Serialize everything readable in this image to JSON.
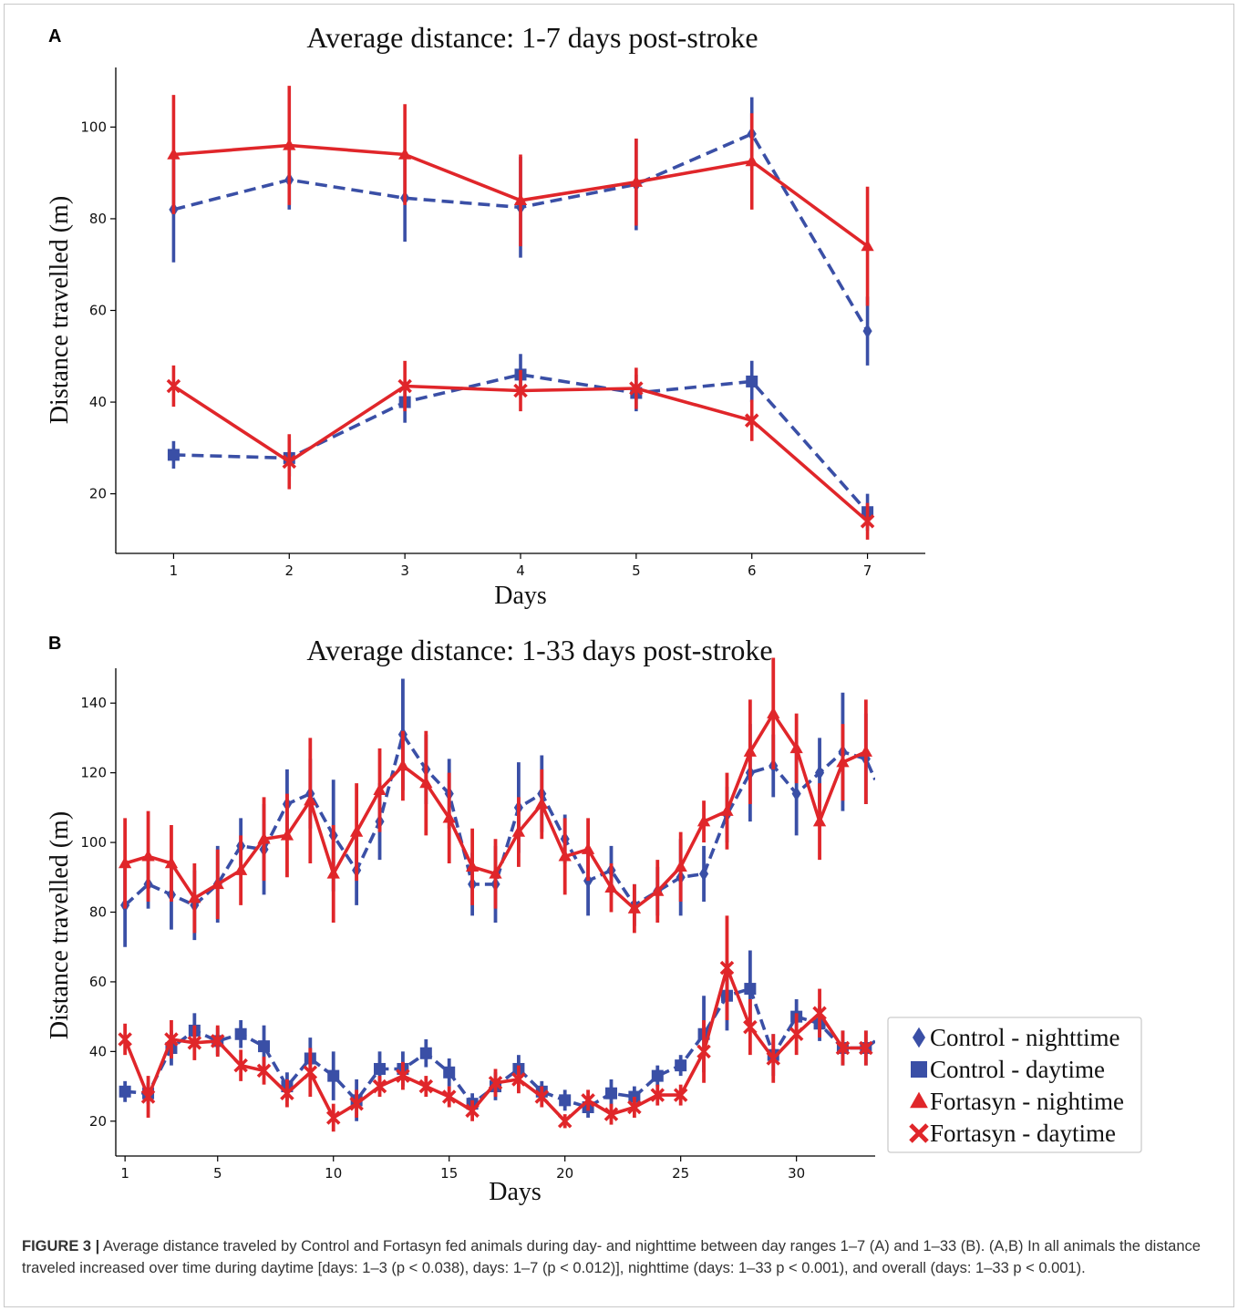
{
  "caption": {
    "lead": "FIGURE 3 |",
    "text": "Average distance traveled by Control and Fortasyn fed animals during day- and nighttime between day ranges 1–7 (A) and 1–33 (B). (A,B) In all animals the distance traveled increased over time during daytime [days: 1–3 (p < 0.038), days: 1–7 (p < 0.012)], nighttime (days: 1–33 p < 0.001), and overall (days: 1–33 p < 0.001)."
  },
  "colors": {
    "control": "#3a4fa6",
    "fortasyn": "#e0262a"
  },
  "legend": {
    "placement": "right",
    "items": [
      {
        "label": "Control - nighttime",
        "marker": "diamond",
        "color": "#3a4fa6"
      },
      {
        "label": "Control - daytime",
        "marker": "square",
        "color": "#3a4fa6"
      },
      {
        "label": "Fortasyn - nightime",
        "marker": "triangle",
        "color": "#e0262a"
      },
      {
        "label": "Fortasyn - daytime",
        "marker": "x",
        "color": "#e0262a"
      }
    ]
  },
  "chart_data": [
    {
      "panel": "A",
      "type": "line",
      "title": "Average distance: 1-7 days post-stroke",
      "xlabel": "Days",
      "ylabel": "Distance travelled (m)",
      "xlim": [
        0.5,
        7.5
      ],
      "ylim": [
        7,
        113
      ],
      "xticks": [
        1,
        2,
        3,
        4,
        5,
        6,
        7
      ],
      "yticks": [
        20,
        40,
        60,
        80,
        100
      ],
      "grid": false,
      "series": [
        {
          "name": "Control - nighttime",
          "color": "#3a4fa6",
          "linestyle": "dashed",
          "marker": "diamond",
          "x": [
            1,
            2,
            3,
            4,
            5,
            6,
            7
          ],
          "y": [
            82,
            88.5,
            84.5,
            82.5,
            87.5,
            98.5,
            55.5
          ],
          "err": [
            11.5,
            6.5,
            9.5,
            11,
            10,
            8,
            7.5
          ]
        },
        {
          "name": "Control - daytime",
          "color": "#3a4fa6",
          "linestyle": "dashed",
          "marker": "square",
          "x": [
            1,
            2,
            3,
            4,
            5,
            6,
            7
          ],
          "y": [
            28.5,
            27.8,
            40,
            46,
            42,
            44.5,
            16
          ],
          "err": [
            3,
            4,
            4.5,
            4.5,
            4,
            4.5,
            4
          ]
        },
        {
          "name": "Fortasyn - nightime",
          "color": "#e0262a",
          "linestyle": "solid",
          "marker": "triangle",
          "x": [
            1,
            2,
            3,
            4,
            5,
            6,
            7
          ],
          "y": [
            94,
            96,
            94,
            84,
            88,
            92.5,
            74
          ],
          "err": [
            13,
            13,
            11,
            10,
            9.5,
            10.5,
            13
          ]
        },
        {
          "name": "Fortasyn - daytime",
          "color": "#e0262a",
          "linestyle": "solid",
          "marker": "x",
          "x": [
            1,
            2,
            3,
            4,
            5,
            6,
            7
          ],
          "y": [
            43.5,
            27,
            43.5,
            42.5,
            43,
            36,
            14
          ],
          "err": [
            4.5,
            6,
            5.5,
            4.5,
            4.5,
            4.5,
            4
          ]
        }
      ]
    },
    {
      "panel": "B",
      "type": "line",
      "title": "Average distance: 1-33 days post-stroke",
      "xlabel": "Days",
      "ylabel": "Distance travelled (m)",
      "xlim": [
        0.6,
        33.4
      ],
      "ylim": [
        10,
        150
      ],
      "xticks": [
        1,
        5,
        10,
        15,
        20,
        25,
        30
      ],
      "yticks": [
        20,
        40,
        60,
        80,
        100,
        120,
        140
      ],
      "grid": false,
      "series": [
        {
          "name": "Control - nighttime",
          "color": "#3a4fa6",
          "linestyle": "dashed",
          "marker": "diamond",
          "x": [
            1,
            2,
            3,
            4,
            5,
            6,
            7,
            8,
            9,
            10,
            11,
            12,
            13,
            14,
            15,
            16,
            17,
            18,
            19,
            20,
            21,
            22,
            23,
            24,
            25,
            26,
            27,
            28,
            29,
            30,
            31,
            32,
            33,
            33.4
          ],
          "y": [
            82,
            88,
            85,
            82,
            88,
            99,
            98,
            111,
            114,
            102,
            92,
            106,
            131,
            121,
            114,
            88,
            88,
            110,
            114,
            101,
            89,
            92,
            82,
            86,
            90,
            91,
            108,
            120,
            122,
            114,
            120,
            126,
            124,
            118
          ],
          "err": [
            12,
            7,
            10,
            10,
            11,
            8,
            13,
            10,
            10,
            16,
            10,
            11,
            16,
            10,
            10,
            9,
            11,
            13,
            11,
            7,
            10,
            7,
            6,
            7,
            11,
            8,
            8,
            14,
            9,
            12,
            10,
            17,
            13,
            0
          ]
        },
        {
          "name": "Control - daytime",
          "color": "#3a4fa6",
          "linestyle": "dashed",
          "marker": "square",
          "x": [
            1,
            2,
            3,
            4,
            5,
            6,
            7,
            8,
            9,
            10,
            11,
            12,
            13,
            14,
            15,
            16,
            17,
            18,
            19,
            20,
            21,
            22,
            23,
            24,
            25,
            26,
            27,
            28,
            29,
            30,
            31,
            32,
            33,
            33.4
          ],
          "y": [
            28.5,
            28,
            41,
            46,
            43,
            45,
            41.5,
            30,
            38,
            33,
            26,
            35,
            35,
            39.5,
            34,
            25,
            30,
            35,
            28.5,
            26,
            24,
            28,
            27,
            33,
            36,
            45,
            56,
            58,
            39,
            50,
            48,
            41,
            41,
            43
          ],
          "err": [
            3,
            3,
            5,
            5,
            4,
            4,
            6,
            4,
            6,
            7,
            6,
            5,
            5,
            4,
            4,
            3,
            4,
            4,
            3,
            3,
            3,
            4,
            3,
            3,
            3,
            11,
            10,
            11,
            6,
            5,
            5,
            5,
            5,
            0
          ]
        },
        {
          "name": "Fortasyn - nightime",
          "color": "#e0262a",
          "linestyle": "solid",
          "marker": "triangle",
          "x": [
            1,
            2,
            3,
            4,
            5,
            6,
            7,
            8,
            9,
            10,
            11,
            12,
            13,
            14,
            15,
            16,
            17,
            18,
            19,
            20,
            21,
            22,
            23,
            24,
            25,
            26,
            27,
            28,
            29,
            30,
            31,
            32,
            33
          ],
          "y": [
            94,
            96,
            94,
            84,
            88,
            92,
            101,
            102,
            112,
            91,
            103,
            115,
            122,
            117,
            107,
            93,
            91,
            103,
            111,
            96,
            98,
            87,
            81,
            86,
            93,
            106,
            109,
            126,
            137,
            127,
            106,
            123,
            126
          ],
          "err": [
            13,
            13,
            11,
            10,
            10,
            10,
            12,
            12,
            18,
            14,
            14,
            12,
            10,
            15,
            13,
            11,
            10,
            10,
            10,
            11,
            9,
            7,
            7,
            9,
            10,
            6,
            11,
            15,
            16,
            10,
            11,
            11,
            15
          ]
        },
        {
          "name": "Fortasyn - daytime",
          "color": "#e0262a",
          "linestyle": "solid",
          "marker": "x",
          "x": [
            1,
            2,
            3,
            4,
            5,
            6,
            7,
            8,
            9,
            10,
            11,
            12,
            13,
            14,
            15,
            16,
            17,
            18,
            19,
            20,
            21,
            22,
            23,
            24,
            25,
            26,
            27,
            28,
            29,
            30,
            31,
            32,
            33
          ],
          "y": [
            43.5,
            27,
            43.5,
            42.5,
            43,
            36,
            34.5,
            28,
            34,
            21,
            25,
            30,
            33,
            30,
            27,
            23,
            31,
            32,
            27,
            20,
            26,
            22,
            24,
            27.5,
            27.5,
            40,
            64,
            47,
            38,
            45,
            51,
            41,
            41
          ],
          "err": [
            4.5,
            6,
            5.5,
            5,
            4.5,
            4.5,
            4,
            4,
            7,
            4,
            4,
            3,
            4,
            3,
            3,
            3,
            4,
            4,
            3,
            2,
            3,
            3,
            3,
            3,
            3,
            9,
            15,
            8,
            7,
            6,
            7,
            5,
            5
          ]
        }
      ]
    }
  ]
}
